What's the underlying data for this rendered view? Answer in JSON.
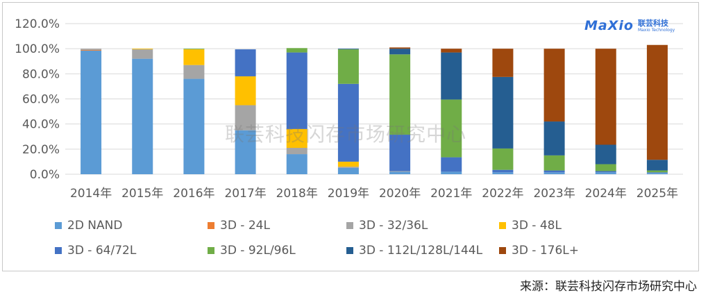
{
  "logo": {
    "mark": "MaXio",
    "name_cn": "联芸科技",
    "name_en": "Maxio Technology"
  },
  "watermark": "联芸科技闪存市场研究中心",
  "source": "来源：联芸科技闪存市场研究中心",
  "chart_data": {
    "type": "bar",
    "stacked": true,
    "categories": [
      "2014年",
      "2015年",
      "2016年",
      "2017年",
      "2018年",
      "2019年",
      "2020年",
      "2021年",
      "2022年",
      "2023年",
      "2024年",
      "2025年"
    ],
    "y_tick_labels": [
      "0.0%",
      "20.0%",
      "40.0%",
      "60.0%",
      "80.0%",
      "100.0%",
      "120.0%"
    ],
    "ylim": [
      0,
      120
    ],
    "grid": true,
    "legend_position": "bottom",
    "series": [
      {
        "name": "2D NAND",
        "color": "#5b9bd5",
        "values": [
          98.5,
          92,
          76,
          35,
          16,
          5,
          2,
          2,
          1.5,
          1.5,
          1.5,
          1
        ]
      },
      {
        "name": "3D - 24L",
        "color": "#ed7d31",
        "values": [
          0.5,
          0,
          0,
          0,
          0,
          0,
          0,
          0,
          0,
          0,
          0,
          0
        ]
      },
      {
        "name": "3D - 32/36L",
        "color": "#a5a5a5",
        "values": [
          1,
          7.5,
          11,
          20,
          5,
          1,
          0.5,
          0,
          0,
          0,
          0,
          0
        ]
      },
      {
        "name": "3D - 48L",
        "color": "#ffc000",
        "values": [
          0,
          0.5,
          12.5,
          23,
          15,
          4,
          0,
          0,
          0,
          0,
          0,
          0
        ]
      },
      {
        "name": "3D - 64/72L",
        "color": "#4472c4",
        "values": [
          0,
          0,
          0,
          21.5,
          61,
          62,
          29,
          11.5,
          2,
          1.5,
          1,
          0.5
        ]
      },
      {
        "name": "3D - 92L/96L",
        "color": "#70ad47",
        "values": [
          0,
          0,
          0.5,
          0,
          3.5,
          27.5,
          64,
          46,
          17,
          12,
          5.5,
          1.5
        ]
      },
      {
        "name": "3D - 112L/128L/144L",
        "color": "#255e91",
        "values": [
          0,
          0,
          0,
          0,
          0,
          0.5,
          4.5,
          37.5,
          57,
          27,
          15.5,
          8.5
        ]
      },
      {
        "name": "3D - 176L+",
        "color": "#9e480e",
        "values": [
          0,
          0,
          0,
          0,
          0,
          0,
          1,
          3,
          22.5,
          58,
          76.5,
          91.5
        ]
      }
    ]
  }
}
